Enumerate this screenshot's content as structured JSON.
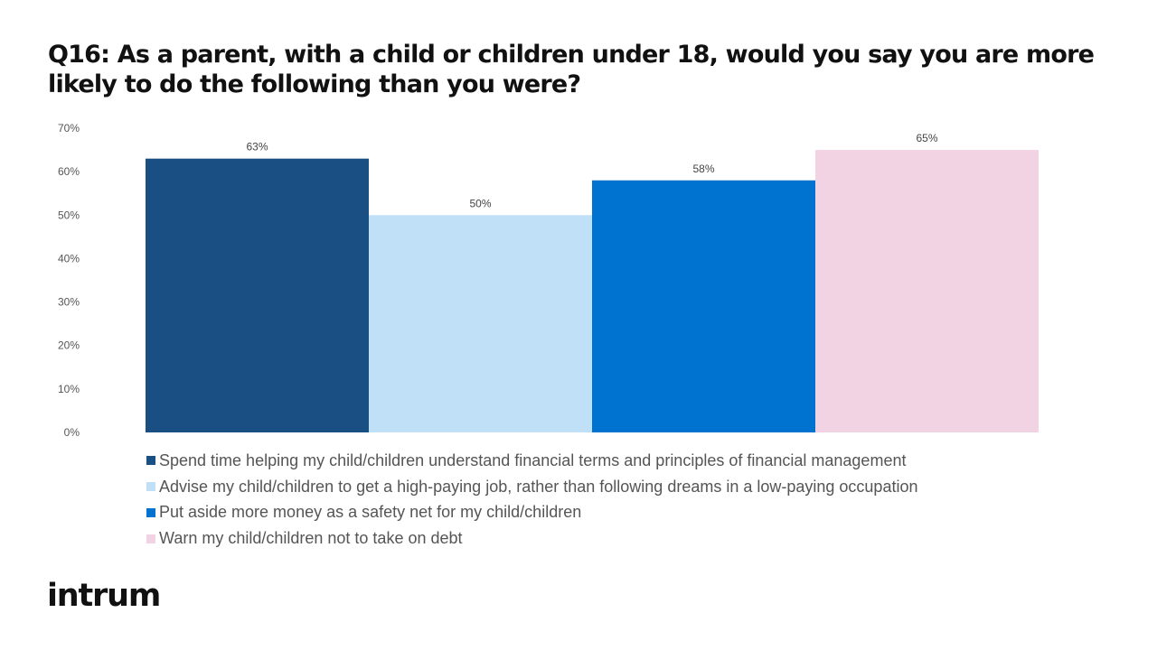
{
  "chart_data": {
    "type": "bar",
    "title": "Q16: As a parent, with a child or children under 18, would you say you are more likely to do the following than you were?",
    "xlabel": "",
    "ylabel": "",
    "ylim": [
      0,
      70
    ],
    "y_ticks": [
      "0%",
      "10%",
      "20%",
      "30%",
      "40%",
      "50%",
      "60%",
      "70%"
    ],
    "grid": false,
    "legend_position": "bottom",
    "series": [
      {
        "name": "Spend time helping my child/children understand financial terms and principles of financial management",
        "value": 63,
        "label": "63%",
        "color": "#1a4f84"
      },
      {
        "name": "Advise my child/children to get a high-paying job, rather than following dreams in a low-paying occupation",
        "value": 50,
        "label": "50%",
        "color": "#bfe0f7"
      },
      {
        "name": "Put aside more money as a safety net for my child/children",
        "value": 58,
        "label": "58%",
        "color": "#0073d0"
      },
      {
        "name": "Warn my child/children not to take on debt",
        "value": 65,
        "label": "65%",
        "color": "#f1d3e3"
      }
    ]
  },
  "brand": {
    "logo_text": "intrum"
  }
}
